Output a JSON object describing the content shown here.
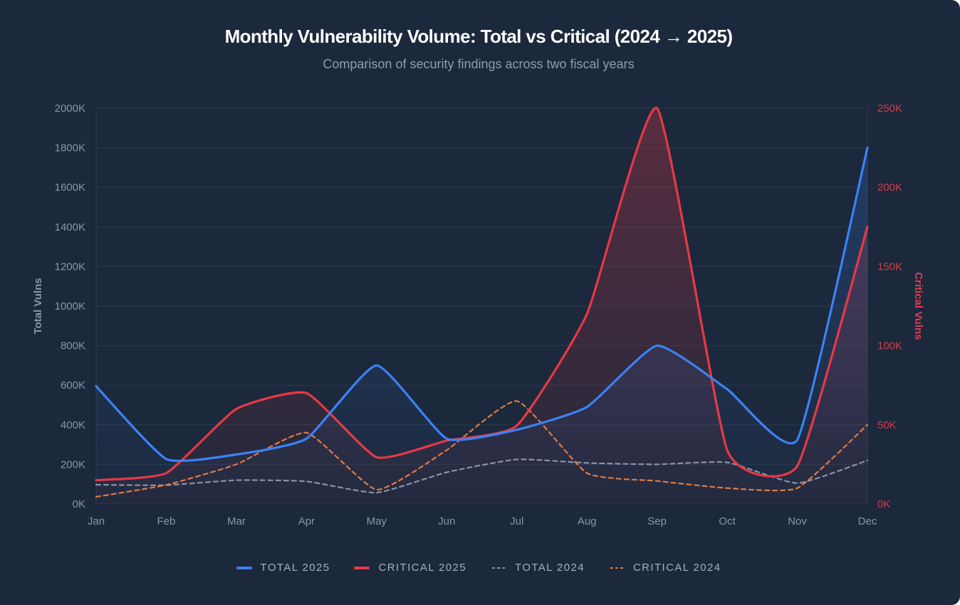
{
  "chart_data": {
    "type": "line",
    "title": "Monthly Vulnerability Volume: Total vs Critical (2024 → 2025)",
    "subtitle": "Comparison of security findings across two fiscal years",
    "categories": [
      "Jan",
      "Feb",
      "Mar",
      "Apr",
      "May",
      "Jun",
      "Jul",
      "Aug",
      "Sep",
      "Oct",
      "Nov",
      "Dec"
    ],
    "y_left": {
      "label": "Total Vulns",
      "range": [
        0,
        2000
      ],
      "ticks": [
        "0K",
        "200K",
        "400K",
        "600K",
        "800K",
        "1000K",
        "1200K",
        "1400K",
        "1600K",
        "1800K",
        "2000K"
      ]
    },
    "y_right": {
      "label": "Critical Vulns",
      "range": [
        0,
        250
      ],
      "ticks": [
        "0K",
        "50K",
        "100K",
        "150K",
        "200K",
        "250K"
      ]
    },
    "unit": "K",
    "grid": true,
    "legend_position": "bottom",
    "series": [
      {
        "name": "TOTAL 2025",
        "axis": "left",
        "style": "solid",
        "filled": true,
        "color": "#3b82f6",
        "values": [
          595,
          227,
          250,
          330,
          700,
          330,
          375,
          490,
          800,
          580,
          325,
          1800
        ]
      },
      {
        "name": "CRITICAL 2025",
        "axis": "right",
        "style": "solid",
        "filled": true,
        "color": "#e63946",
        "values": [
          15,
          19.5,
          60,
          70,
          29.5,
          40,
          49.5,
          120,
          250,
          34,
          24,
          175
        ]
      },
      {
        "name": "TOTAL 2024",
        "axis": "left",
        "style": "dashed",
        "filled": false,
        "color": "#8a93a8",
        "values": [
          97,
          95,
          120,
          114,
          57,
          160,
          225,
          207,
          200,
          210,
          105,
          220
        ]
      },
      {
        "name": "CRITICAL 2024",
        "axis": "right",
        "style": "dashed",
        "filled": false,
        "color": "#e07a45",
        "values": [
          4.5,
          12,
          25,
          45,
          9,
          34,
          65,
          19.5,
          14.5,
          10,
          10,
          50
        ]
      }
    ]
  }
}
